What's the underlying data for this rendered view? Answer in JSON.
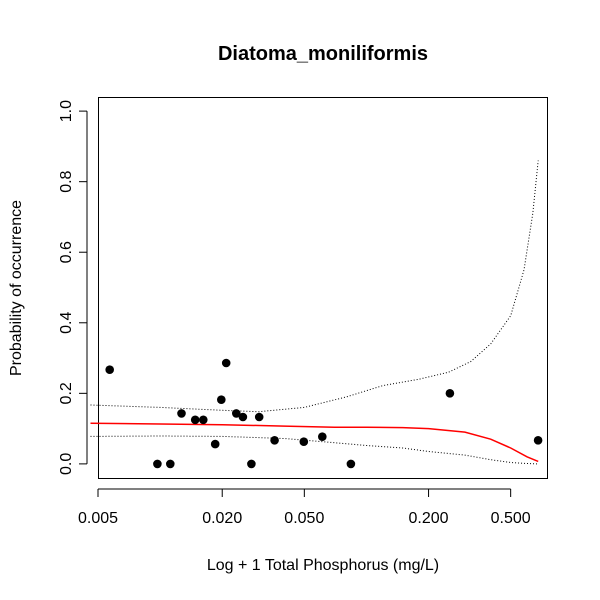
{
  "chart_data": {
    "type": "scatter",
    "title": "Diatoma_moniliformis",
    "xlabel": "Log + 1 Total Phosphorus (mg/L)",
    "ylabel": "Probability of occurrence",
    "x_scale": "log",
    "xlim": [
      0.005,
      0.75
    ],
    "ylim": [
      -0.04,
      1.04
    ],
    "x_ticks": [
      0.005,
      0.02,
      0.05,
      0.2,
      0.5
    ],
    "x_tick_labels": [
      "0.005",
      "0.020",
      "0.050",
      "0.200",
      "0.500"
    ],
    "y_ticks": [
      0.0,
      0.2,
      0.4,
      0.6,
      0.8,
      1.0
    ],
    "y_tick_labels": [
      "0.0",
      "0.2",
      "0.4",
      "0.6",
      "0.8",
      "1.0"
    ],
    "grid": false,
    "points": [
      {
        "x": 0.0057,
        "y": 0.267
      },
      {
        "x": 0.0097,
        "y": 0.0
      },
      {
        "x": 0.0112,
        "y": 0.0
      },
      {
        "x": 0.0127,
        "y": 0.143
      },
      {
        "x": 0.0148,
        "y": 0.125
      },
      {
        "x": 0.0162,
        "y": 0.125
      },
      {
        "x": 0.0185,
        "y": 0.056
      },
      {
        "x": 0.0198,
        "y": 0.182
      },
      {
        "x": 0.0209,
        "y": 0.286
      },
      {
        "x": 0.0234,
        "y": 0.143
      },
      {
        "x": 0.0252,
        "y": 0.133
      },
      {
        "x": 0.0277,
        "y": 0.0
      },
      {
        "x": 0.0302,
        "y": 0.133
      },
      {
        "x": 0.0359,
        "y": 0.067
      },
      {
        "x": 0.0497,
        "y": 0.063
      },
      {
        "x": 0.0611,
        "y": 0.077
      },
      {
        "x": 0.0841,
        "y": 0.0
      },
      {
        "x": 0.2537,
        "y": 0.2
      },
      {
        "x": 0.6794,
        "y": 0.067
      }
    ],
    "fit_line": {
      "color": "#ff0000",
      "x": [
        0.0046,
        0.01,
        0.02,
        0.04,
        0.07,
        0.1,
        0.15,
        0.2,
        0.3,
        0.4,
        0.5,
        0.6,
        0.68
      ],
      "y": [
        0.115,
        0.113,
        0.111,
        0.107,
        0.104,
        0.104,
        0.103,
        0.1,
        0.09,
        0.07,
        0.045,
        0.02,
        0.007
      ]
    },
    "upper_ci": {
      "color": "#000000",
      "x": [
        0.0046,
        0.01,
        0.02,
        0.03,
        0.05,
        0.08,
        0.12,
        0.18,
        0.25,
        0.32,
        0.4,
        0.5,
        0.58,
        0.64,
        0.68
      ],
      "y": [
        0.167,
        0.16,
        0.152,
        0.148,
        0.16,
        0.19,
        0.222,
        0.24,
        0.26,
        0.29,
        0.34,
        0.42,
        0.55,
        0.71,
        0.86
      ]
    },
    "lower_ci": {
      "color": "#000000",
      "x": [
        0.0046,
        0.01,
        0.02,
        0.04,
        0.07,
        0.1,
        0.15,
        0.2,
        0.3,
        0.4,
        0.5,
        0.6,
        0.68
      ],
      "y": [
        0.078,
        0.079,
        0.078,
        0.072,
        0.06,
        0.052,
        0.045,
        0.035,
        0.025,
        0.012,
        0.004,
        0.001,
        0.0
      ]
    }
  }
}
